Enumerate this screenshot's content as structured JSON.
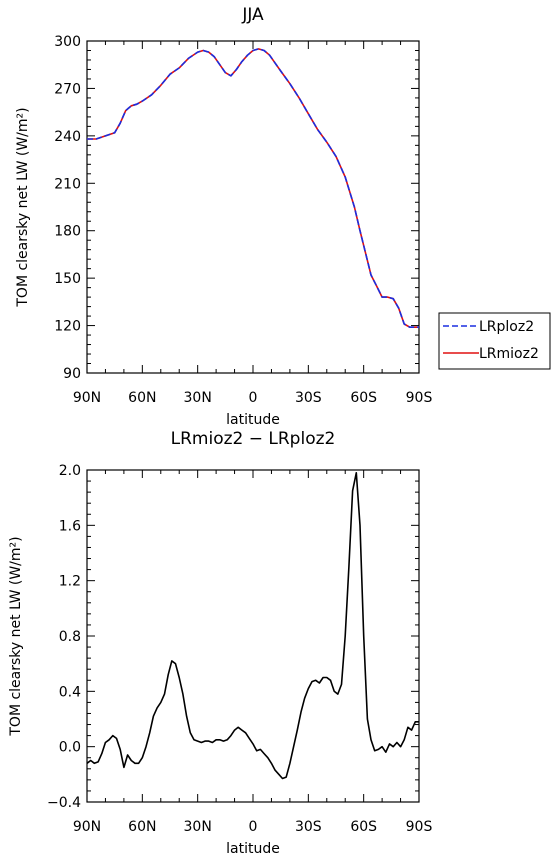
{
  "chart_data": [
    {
      "type": "line",
      "title": "JJA",
      "xlabel": "latitude",
      "ylabel": "TOM clearsky net LW (W/m²)",
      "x_ticks": [
        {
          "v": 90,
          "label": "90N"
        },
        {
          "v": 60,
          "label": "60N"
        },
        {
          "v": 30,
          "label": "30N"
        },
        {
          "v": 0,
          "label": "0"
        },
        {
          "v": -30,
          "label": "30S"
        },
        {
          "v": -60,
          "label": "60S"
        },
        {
          "v": -90,
          "label": "90S"
        }
      ],
      "xlim": [
        90,
        -90
      ],
      "ylim": [
        90,
        300
      ],
      "y_ticks": [
        90,
        120,
        150,
        180,
        210,
        240,
        270,
        300
      ],
      "legend_position": "right",
      "series": [
        {
          "name": "LRploz2",
          "color": "#1a2ee0",
          "dash": "dashed",
          "x": [
            90,
            85,
            80,
            75,
            72,
            69,
            66,
            63,
            60,
            55,
            50,
            45,
            40,
            35,
            30,
            27,
            24,
            21,
            18,
            15,
            12,
            9,
            6,
            3,
            0,
            -3,
            -6,
            -9,
            -12,
            -15,
            -20,
            -25,
            -30,
            -35,
            -40,
            -45,
            -50,
            -55,
            -58,
            -61,
            -64,
            -67,
            -70,
            -73,
            -76,
            -79,
            -82,
            -85,
            -87,
            -89,
            -90
          ],
          "y": [
            238,
            238,
            240,
            242,
            248,
            256,
            259,
            260,
            262,
            266,
            272,
            279,
            283,
            289,
            293,
            294,
            293,
            290,
            285,
            280,
            278,
            282,
            287,
            291,
            294,
            295,
            294,
            291,
            286,
            281,
            273,
            264,
            254,
            244,
            236,
            227,
            214,
            195,
            180,
            166,
            152,
            145,
            138,
            138,
            137,
            131,
            121,
            119,
            119,
            119,
            119
          ]
        },
        {
          "name": "LRmioz2",
          "color": "#e01010",
          "dash": "solid",
          "x": [
            90,
            85,
            80,
            75,
            72,
            69,
            66,
            63,
            60,
            55,
            50,
            45,
            40,
            35,
            30,
            27,
            24,
            21,
            18,
            15,
            12,
            9,
            6,
            3,
            0,
            -3,
            -6,
            -9,
            -12,
            -15,
            -20,
            -25,
            -30,
            -35,
            -40,
            -45,
            -50,
            -55,
            -58,
            -61,
            -64,
            -67,
            -70,
            -73,
            -76,
            -79,
            -82,
            -85,
            -87,
            -89,
            -90
          ],
          "y": [
            238,
            238,
            240,
            242,
            248,
            256,
            259,
            260,
            262,
            266,
            272,
            279,
            283,
            289,
            293,
            294,
            293,
            290,
            285,
            280,
            278,
            282,
            287,
            291,
            294,
            295,
            294,
            291,
            286,
            281,
            273,
            264,
            254,
            244,
            236,
            227,
            214,
            195,
            180,
            166,
            152,
            145,
            138,
            138,
            137,
            131,
            121,
            119,
            119,
            119,
            119
          ]
        }
      ]
    },
    {
      "type": "line",
      "title": "LRmioz2 − LRploz2",
      "xlabel": "latitude",
      "ylabel": "TOM clearsky net LW (W/m²)",
      "x_ticks": [
        {
          "v": 90,
          "label": "90N"
        },
        {
          "v": 60,
          "label": "60N"
        },
        {
          "v": 30,
          "label": "30N"
        },
        {
          "v": 0,
          "label": "0"
        },
        {
          "v": -30,
          "label": "30S"
        },
        {
          "v": -60,
          "label": "60S"
        },
        {
          "v": -90,
          "label": "90S"
        }
      ],
      "xlim": [
        90,
        -90
      ],
      "ylim": [
        -0.4,
        2.0
      ],
      "y_ticks": [
        {
          "v": -0.4,
          "label": "−0.4"
        },
        {
          "v": 0.0,
          "label": "0.0"
        },
        {
          "v": 0.4,
          "label": "0.4"
        },
        {
          "v": 0.8,
          "label": "0.8"
        },
        {
          "v": 1.2,
          "label": "1.2"
        },
        {
          "v": 1.6,
          "label": "1.6"
        },
        {
          "v": 2.0,
          "label": "2.0"
        }
      ],
      "series": [
        {
          "color": "#000000",
          "x": [
            90,
            88,
            86,
            84,
            82,
            80,
            78,
            76,
            74,
            72,
            70,
            68,
            66,
            64,
            62,
            60,
            58,
            56,
            54,
            52,
            50,
            48,
            46,
            44,
            42,
            40,
            38,
            36,
            34,
            32,
            30,
            28,
            26,
            24,
            22,
            20,
            18,
            16,
            14,
            12,
            10,
            8,
            6,
            4,
            2,
            0,
            -2,
            -4,
            -6,
            -8,
            -10,
            -12,
            -14,
            -16,
            -18,
            -20,
            -22,
            -24,
            -26,
            -28,
            -30,
            -32,
            -34,
            -36,
            -38,
            -40,
            -42,
            -44,
            -46,
            -48,
            -50,
            -52,
            -54,
            -56,
            -58,
            -60,
            -62,
            -64,
            -66,
            -68,
            -70,
            -72,
            -74,
            -76,
            -78,
            -80,
            -82,
            -84,
            -86,
            -88,
            -90
          ],
          "y": [
            -0.12,
            -0.1,
            -0.12,
            -0.11,
            -0.05,
            0.03,
            0.05,
            0.08,
            0.06,
            -0.02,
            -0.15,
            -0.06,
            -0.1,
            -0.12,
            -0.12,
            -0.08,
            0.0,
            0.1,
            0.22,
            0.28,
            0.32,
            0.38,
            0.52,
            0.62,
            0.6,
            0.5,
            0.38,
            0.22,
            0.1,
            0.05,
            0.04,
            0.03,
            0.04,
            0.04,
            0.03,
            0.05,
            0.05,
            0.04,
            0.05,
            0.08,
            0.12,
            0.14,
            0.12,
            0.1,
            0.06,
            0.02,
            -0.03,
            -0.02,
            -0.05,
            -0.08,
            -0.12,
            -0.17,
            -0.2,
            -0.23,
            -0.22,
            -0.12,
            0.0,
            0.12,
            0.25,
            0.35,
            0.42,
            0.47,
            0.48,
            0.46,
            0.5,
            0.5,
            0.48,
            0.4,
            0.38,
            0.45,
            0.8,
            1.3,
            1.85,
            1.98,
            1.6,
            0.8,
            0.2,
            0.05,
            -0.03,
            -0.02,
            0.0,
            -0.04,
            0.02,
            0.0,
            0.03,
            0.0,
            0.05,
            0.14,
            0.12,
            0.18,
            0.18
          ]
        }
      ]
    }
  ]
}
